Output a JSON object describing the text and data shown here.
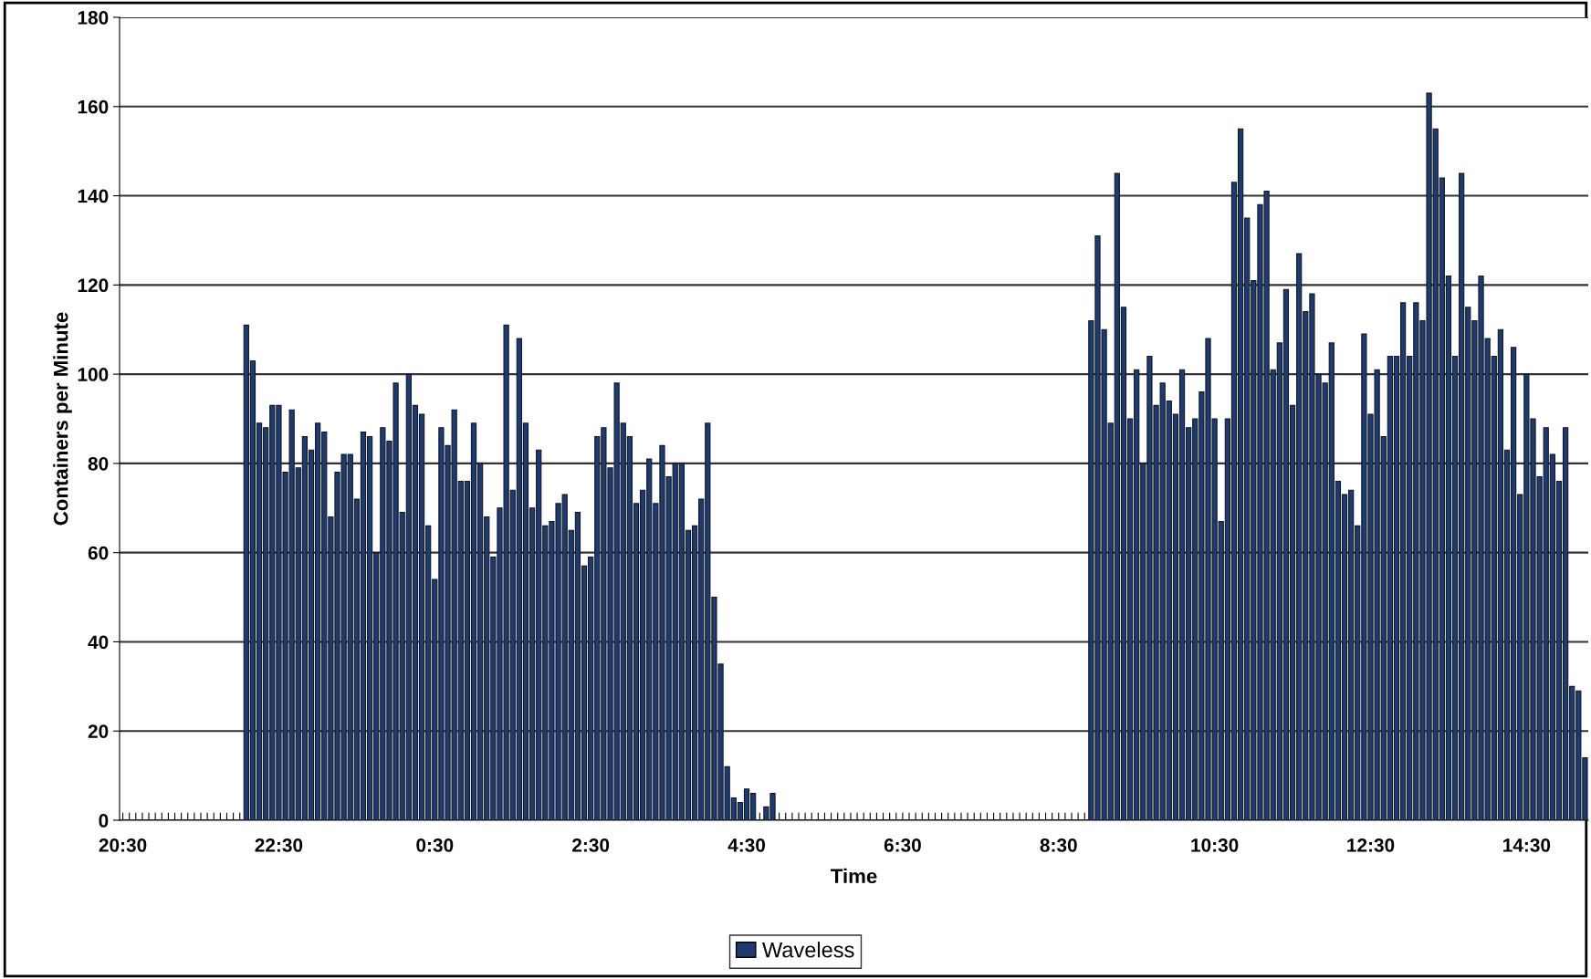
{
  "chart_data": {
    "type": "bar",
    "xlabel": "Time",
    "ylabel": "Containers per Minute",
    "categories": [
      "20:30",
      null,
      null,
      null,
      null,
      null,
      null,
      null,
      null,
      null,
      null,
      null,
      null,
      null,
      null,
      null,
      null,
      null,
      null,
      null,
      null,
      null,
      null,
      null,
      "22:30",
      null,
      null,
      null,
      null,
      null,
      null,
      null,
      null,
      null,
      null,
      null,
      null,
      null,
      null,
      null,
      null,
      null,
      null,
      null,
      null,
      null,
      null,
      null,
      "0:30",
      null,
      null,
      null,
      null,
      null,
      null,
      null,
      null,
      null,
      null,
      null,
      null,
      null,
      null,
      null,
      null,
      null,
      null,
      null,
      null,
      null,
      null,
      null,
      "2:30",
      null,
      null,
      null,
      null,
      null,
      null,
      null,
      null,
      null,
      null,
      null,
      null,
      null,
      null,
      null,
      null,
      null,
      null,
      null,
      null,
      null,
      null,
      null,
      "4:30",
      null,
      null,
      null,
      null,
      null,
      null,
      null,
      null,
      null,
      null,
      null,
      null,
      null,
      null,
      null,
      null,
      null,
      null,
      null,
      null,
      null,
      null,
      null,
      "6:30",
      null,
      null,
      null,
      null,
      null,
      null,
      null,
      null,
      null,
      null,
      null,
      null,
      null,
      null,
      null,
      null,
      null,
      null,
      null,
      null,
      null,
      null,
      null,
      "8:30",
      null,
      null,
      null,
      null,
      null,
      null,
      null,
      null,
      null,
      null,
      null,
      null,
      null,
      null,
      null,
      null,
      null,
      null,
      null,
      null,
      null,
      null,
      null,
      "10:30",
      null,
      null,
      null,
      null,
      null,
      null,
      null,
      null,
      null,
      null,
      null,
      null,
      null,
      null,
      null,
      null,
      null,
      null,
      null,
      null,
      null,
      null,
      null,
      "12:30",
      null,
      null,
      null,
      null,
      null,
      null,
      null,
      null,
      null,
      null,
      null,
      null,
      null,
      null,
      null,
      null,
      null,
      null,
      null,
      null,
      null,
      null,
      null,
      "14:30",
      null,
      null,
      null,
      null,
      null,
      null,
      null,
      null,
      null
    ],
    "series": [
      {
        "name": "Waveless",
        "color": "#1f3a6e",
        "values": [
          null,
          null,
          null,
          null,
          null,
          null,
          null,
          null,
          null,
          null,
          null,
          null,
          null,
          null,
          null,
          null,
          null,
          null,
          null,
          111,
          103,
          89,
          88,
          93,
          93,
          78,
          92,
          79,
          86,
          83,
          89,
          87,
          68,
          78,
          82,
          82,
          72,
          87,
          86,
          60,
          88,
          85,
          98,
          69,
          100,
          93,
          91,
          66,
          54,
          88,
          84,
          92,
          76,
          76,
          89,
          80,
          68,
          59,
          70,
          111,
          74,
          108,
          89,
          70,
          83,
          66,
          67,
          71,
          73,
          65,
          69,
          57,
          59,
          86,
          88,
          79,
          98,
          89,
          86,
          71,
          74,
          81,
          71,
          84,
          77,
          80,
          80,
          65,
          66,
          72,
          89,
          50,
          35,
          12,
          5,
          4,
          7,
          6,
          null,
          3,
          6,
          null,
          null,
          null,
          null,
          null,
          null,
          null,
          null,
          null,
          null,
          null,
          null,
          null,
          null,
          null,
          null,
          null,
          null,
          null,
          null,
          null,
          null,
          null,
          null,
          null,
          null,
          null,
          null,
          null,
          null,
          null,
          null,
          null,
          null,
          null,
          null,
          null,
          null,
          null,
          null,
          null,
          null,
          null,
          null,
          null,
          null,
          null,
          null,
          112,
          131,
          110,
          89,
          145,
          115,
          90,
          101,
          80,
          104,
          93,
          98,
          94,
          91,
          101,
          88,
          90,
          96,
          108,
          90,
          67,
          90,
          143,
          155,
          135,
          121,
          138,
          141,
          101,
          107,
          119,
          93,
          127,
          114,
          118,
          100,
          98,
          107,
          76,
          73,
          74,
          66,
          109,
          91,
          101,
          86,
          104,
          104,
          116,
          104,
          116,
          112,
          163,
          155,
          144,
          122,
          104,
          145,
          115,
          112,
          122,
          108,
          104,
          110,
          83,
          106,
          73,
          100,
          90,
          77,
          88,
          82,
          76,
          88,
          30,
          29,
          14
        ]
      }
    ],
    "ylim": [
      0,
      180
    ],
    "yticks": [
      0,
      20,
      40,
      60,
      80,
      100,
      120,
      140,
      160,
      180
    ],
    "grid": "y",
    "legend": "bottom"
  }
}
